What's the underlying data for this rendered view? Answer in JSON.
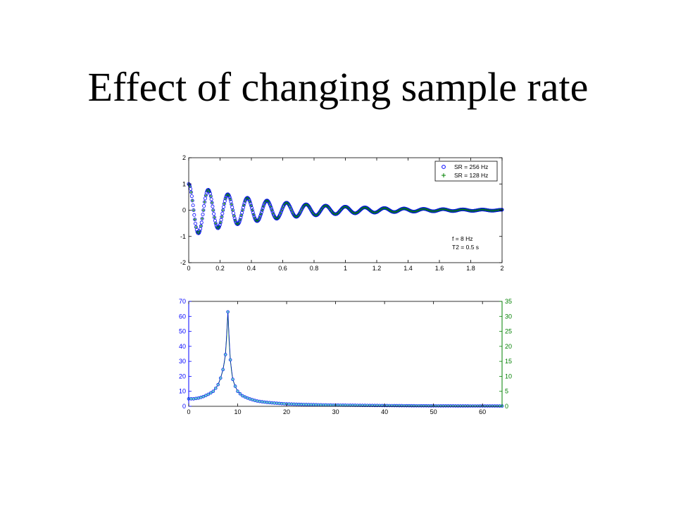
{
  "slide": {
    "title": "Effect of changing sample rate"
  },
  "colors": {
    "series_256": "#0000ff",
    "series_128": "#008000",
    "marker_fill": "#66cccc",
    "axis": "#000000"
  },
  "chart_data": [
    {
      "type": "scatter",
      "title": "",
      "xlabel": "",
      "ylabel": "",
      "xlim": [
        0,
        2
      ],
      "ylim": [
        -2,
        2
      ],
      "x_ticks": [
        "0",
        "0.2",
        "0.4",
        "0.6",
        "0.8",
        "1",
        "1.2",
        "1.4",
        "1.6",
        "1.8",
        "2"
      ],
      "y_ticks": [
        "-2",
        "-1",
        "0",
        "1",
        "2"
      ],
      "legend": {
        "placement": "top-right",
        "entries": [
          "SR = 256 Hz",
          "SR = 128 Hz"
        ]
      },
      "annotation": [
        "f = 8 Hz",
        "T2 = 0.5 s"
      ],
      "signal": {
        "frequency_hz": 8,
        "t2_s": 0.5,
        "amplitude": 1
      },
      "series": [
        {
          "name": "SR = 256 Hz",
          "sample_rate_hz": 256,
          "marker": "o",
          "x_range": [
            0,
            2
          ]
        },
        {
          "name": "SR = 128 Hz",
          "sample_rate_hz": 128,
          "marker": "+",
          "x_range": [
            0,
            2
          ]
        }
      ]
    },
    {
      "type": "line",
      "title": "",
      "xlabel": "",
      "ylabel": "",
      "xlim": [
        0,
        64
      ],
      "x_ticks": [
        "0",
        "10",
        "20",
        "30",
        "40",
        "50",
        "60"
      ],
      "ylim_left": [
        0,
        70
      ],
      "y_ticks_left": [
        "0",
        "10",
        "20",
        "30",
        "40",
        "50",
        "60",
        "70"
      ],
      "ylim_right": [
        0,
        35
      ],
      "y_ticks_right": [
        "0",
        "5",
        "10",
        "15",
        "20",
        "25",
        "30",
        "35"
      ],
      "series": [
        {
          "axis": "left",
          "marker": "o",
          "x": [
            0,
            1,
            2,
            3,
            4,
            5,
            6,
            7,
            7.5,
            8,
            8.5,
            9,
            10,
            11,
            12,
            14,
            16,
            20,
            25,
            30,
            40,
            50,
            64
          ],
          "values": [
            5,
            5,
            5.5,
            6.5,
            8,
            10,
            14.5,
            24.5,
            34.5,
            63,
            31,
            18,
            10,
            7,
            5.5,
            3.5,
            2.6,
            1.6,
            1.1,
            0.8,
            0.5,
            0.3,
            0.2
          ]
        },
        {
          "axis": "right",
          "marker": "none",
          "x": [
            0,
            1,
            2,
            3,
            4,
            5,
            6,
            7,
            7.5,
            8,
            8.5,
            9,
            10,
            11,
            12,
            14,
            16,
            20,
            25,
            30,
            40,
            50,
            64
          ],
          "values": [
            2.5,
            2.5,
            2.75,
            3.25,
            4,
            5,
            7.25,
            12.25,
            17.25,
            31.5,
            15.5,
            9,
            5,
            3.5,
            2.75,
            1.75,
            1.3,
            0.8,
            0.55,
            0.4,
            0.25,
            0.15,
            0.1
          ]
        }
      ]
    }
  ]
}
